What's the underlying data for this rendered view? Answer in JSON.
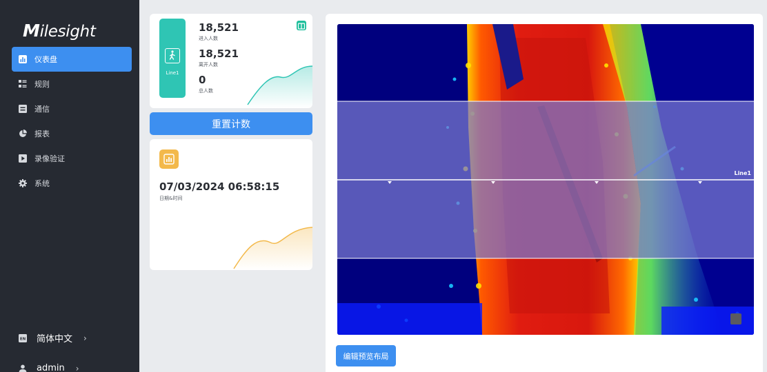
{
  "brand": {
    "logo_text": "Milesight"
  },
  "sidebar": {
    "items": [
      {
        "label": "仪表盘",
        "icon": "dashboard-icon",
        "active": true
      },
      {
        "label": "规则",
        "icon": "rules-icon",
        "active": false
      },
      {
        "label": "通信",
        "icon": "communication-icon",
        "active": false
      },
      {
        "label": "报表",
        "icon": "report-pie-icon",
        "active": false
      },
      {
        "label": "录像验证",
        "icon": "video-play-icon",
        "active": false
      },
      {
        "label": "系统",
        "icon": "gear-icon",
        "active": false
      }
    ],
    "language": {
      "badge": "EN",
      "label": "简体中文",
      "chevron": "›"
    },
    "user": {
      "label": "admin",
      "chevron": "›"
    }
  },
  "counter": {
    "line_label": "Line1",
    "in_count": "18,521",
    "in_label": "进入人数",
    "out_count": "18,521",
    "out_label": "离开人数",
    "total_count": "0",
    "total_label": "总人数"
  },
  "reset_button": {
    "label": "重置计数"
  },
  "datetime": {
    "value": "07/03/2024 06:58:15",
    "label": "日期&时间"
  },
  "preview": {
    "line_label": "Line1",
    "edit_button": "编辑预览布局"
  },
  "colors": {
    "accent": "#3d8ff0",
    "sidebar_bg": "#262a32",
    "teal": "#2fc5b4",
    "amber": "#f3b94b",
    "band": "#6e6ec8"
  }
}
